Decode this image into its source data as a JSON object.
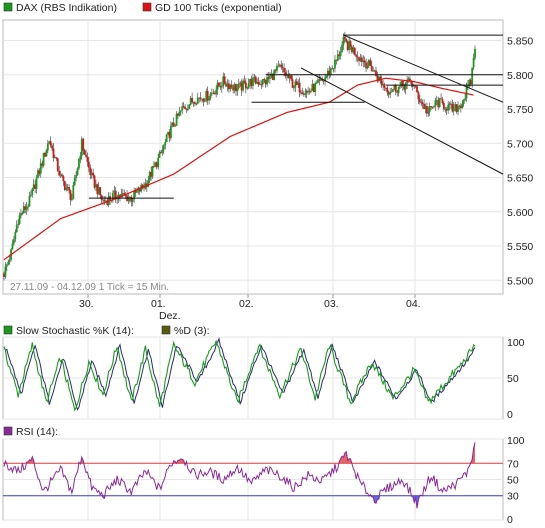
{
  "chart_data": [
    {
      "type": "candlestick",
      "legend": [
        {
          "label": "DAX (RBS Indikation)",
          "color": "#1a9a1a"
        },
        {
          "label": "GD 100 Ticks (exponential)",
          "color": "#e01010"
        }
      ],
      "info_text": "27.11.09 - 04.12.09   1 Tick = 15 Min.",
      "x_ticks": [
        {
          "label": "30.",
          "sub": ""
        },
        {
          "label": "01.",
          "sub": "Dez."
        },
        {
          "label": "02.",
          "sub": ""
        },
        {
          "label": "03.",
          "sub": ""
        },
        {
          "label": "04.",
          "sub": ""
        }
      ],
      "y_ticks": [
        "5.850",
        "5.800",
        "5.750",
        "5.700",
        "5.650",
        "5.600",
        "5.550",
        "5.500"
      ],
      "ylim": [
        5480,
        5880
      ],
      "price_path": [
        [
          0,
          5510
        ],
        [
          5,
          5540
        ],
        [
          10,
          5590
        ],
        [
          18,
          5615
        ],
        [
          25,
          5660
        ],
        [
          32,
          5705
        ],
        [
          40,
          5650
        ],
        [
          48,
          5620
        ],
        [
          55,
          5700
        ],
        [
          62,
          5650
        ],
        [
          70,
          5615
        ],
        [
          80,
          5625
        ],
        [
          90,
          5620
        ],
        [
          100,
          5640
        ],
        [
          110,
          5680
        ],
        [
          118,
          5720
        ],
        [
          126,
          5750
        ],
        [
          135,
          5765
        ],
        [
          145,
          5770
        ],
        [
          155,
          5790
        ],
        [
          165,
          5780
        ],
        [
          175,
          5790
        ],
        [
          185,
          5790
        ],
        [
          195,
          5810
        ],
        [
          205,
          5785
        ],
        [
          215,
          5775
        ],
        [
          225,
          5790
        ],
        [
          235,
          5820
        ],
        [
          240,
          5848
        ],
        [
          246,
          5838
        ],
        [
          252,
          5825
        ],
        [
          260,
          5810
        ],
        [
          266,
          5790
        ],
        [
          272,
          5778
        ],
        [
          280,
          5782
        ],
        [
          288,
          5790
        ],
        [
          295,
          5760
        ],
        [
          300,
          5745
        ],
        [
          306,
          5760
        ],
        [
          312,
          5755
        ],
        [
          318,
          5748
        ],
        [
          324,
          5760
        ],
        [
          330,
          5790
        ],
        [
          333,
          5843
        ]
      ],
      "moving_average": [
        [
          0,
          5530
        ],
        [
          40,
          5590
        ],
        [
          80,
          5620
        ],
        [
          120,
          5655
        ],
        [
          160,
          5710
        ],
        [
          200,
          5745
        ],
        [
          230,
          5760
        ],
        [
          250,
          5785
        ],
        [
          270,
          5795
        ],
        [
          290,
          5790
        ],
        [
          310,
          5780
        ],
        [
          333,
          5770
        ]
      ],
      "trend_lines": [
        {
          "from": [
            240,
            5858
          ],
          "to": [
            360,
            5760
          ]
        },
        {
          "from": [
            240,
            5858
          ],
          "to": [
            360,
            5858
          ]
        },
        {
          "from": [
            210,
            5810
          ],
          "to": [
            360,
            5655
          ]
        },
        {
          "from": [
            185,
            5800
          ],
          "to": [
            360,
            5800
          ]
        },
        {
          "from": [
            270,
            5785
          ],
          "to": [
            360,
            5785
          ]
        },
        {
          "from": [
            175,
            5760
          ],
          "to": [
            255,
            5760
          ]
        },
        {
          "from": [
            60,
            5620
          ],
          "to": [
            120,
            5620
          ]
        }
      ],
      "candle_count": 334
    },
    {
      "type": "line",
      "legend": [
        {
          "label": "Slow Stochastic %K (14):",
          "color": "#1a9a1a"
        },
        {
          "label": "%D (3):",
          "color": "#2a2a70"
        }
      ],
      "y_ticks": [
        "100",
        "50",
        "0"
      ],
      "ylim": [
        0,
        100
      ],
      "k_path": [
        [
          0,
          85
        ],
        [
          10,
          30
        ],
        [
          20,
          90
        ],
        [
          30,
          20
        ],
        [
          40,
          75
        ],
        [
          50,
          10
        ],
        [
          60,
          70
        ],
        [
          70,
          30
        ],
        [
          80,
          90
        ],
        [
          90,
          20
        ],
        [
          100,
          85
        ],
        [
          110,
          15
        ],
        [
          120,
          90
        ],
        [
          135,
          45
        ],
        [
          150,
          95
        ],
        [
          165,
          20
        ],
        [
          180,
          90
        ],
        [
          195,
          30
        ],
        [
          210,
          85
        ],
        [
          220,
          25
        ],
        [
          230,
          90
        ],
        [
          245,
          20
        ],
        [
          260,
          70
        ],
        [
          275,
          25
        ],
        [
          290,
          60
        ],
        [
          300,
          20
        ],
        [
          315,
          50
        ],
        [
          325,
          70
        ],
        [
          333,
          90
        ]
      ]
    },
    {
      "type": "line",
      "legend": [
        {
          "label": "RSI (14):",
          "color": "#8a2a9a"
        }
      ],
      "y_ticks": [
        "100",
        "70",
        "50",
        "30",
        "0"
      ],
      "reference_levels": [
        70,
        30
      ],
      "ylim": [
        0,
        100
      ],
      "rsi_path": [
        [
          0,
          70
        ],
        [
          10,
          60
        ],
        [
          20,
          75
        ],
        [
          28,
          35
        ],
        [
          40,
          62
        ],
        [
          48,
          35
        ],
        [
          55,
          80
        ],
        [
          62,
          40
        ],
        [
          70,
          30
        ],
        [
          80,
          50
        ],
        [
          90,
          35
        ],
        [
          100,
          60
        ],
        [
          110,
          38
        ],
        [
          118,
          70
        ],
        [
          126,
          78
        ],
        [
          135,
          55
        ],
        [
          145,
          60
        ],
        [
          155,
          50
        ],
        [
          165,
          65
        ],
        [
          175,
          45
        ],
        [
          185,
          62
        ],
        [
          195,
          55
        ],
        [
          205,
          40
        ],
        [
          215,
          55
        ],
        [
          225,
          48
        ],
        [
          235,
          65
        ],
        [
          242,
          82
        ],
        [
          252,
          45
        ],
        [
          262,
          25
        ],
        [
          272,
          40
        ],
        [
          282,
          50
        ],
        [
          292,
          20
        ],
        [
          302,
          55
        ],
        [
          310,
          35
        ],
        [
          320,
          45
        ],
        [
          328,
          60
        ],
        [
          333,
          92
        ]
      ]
    }
  ]
}
